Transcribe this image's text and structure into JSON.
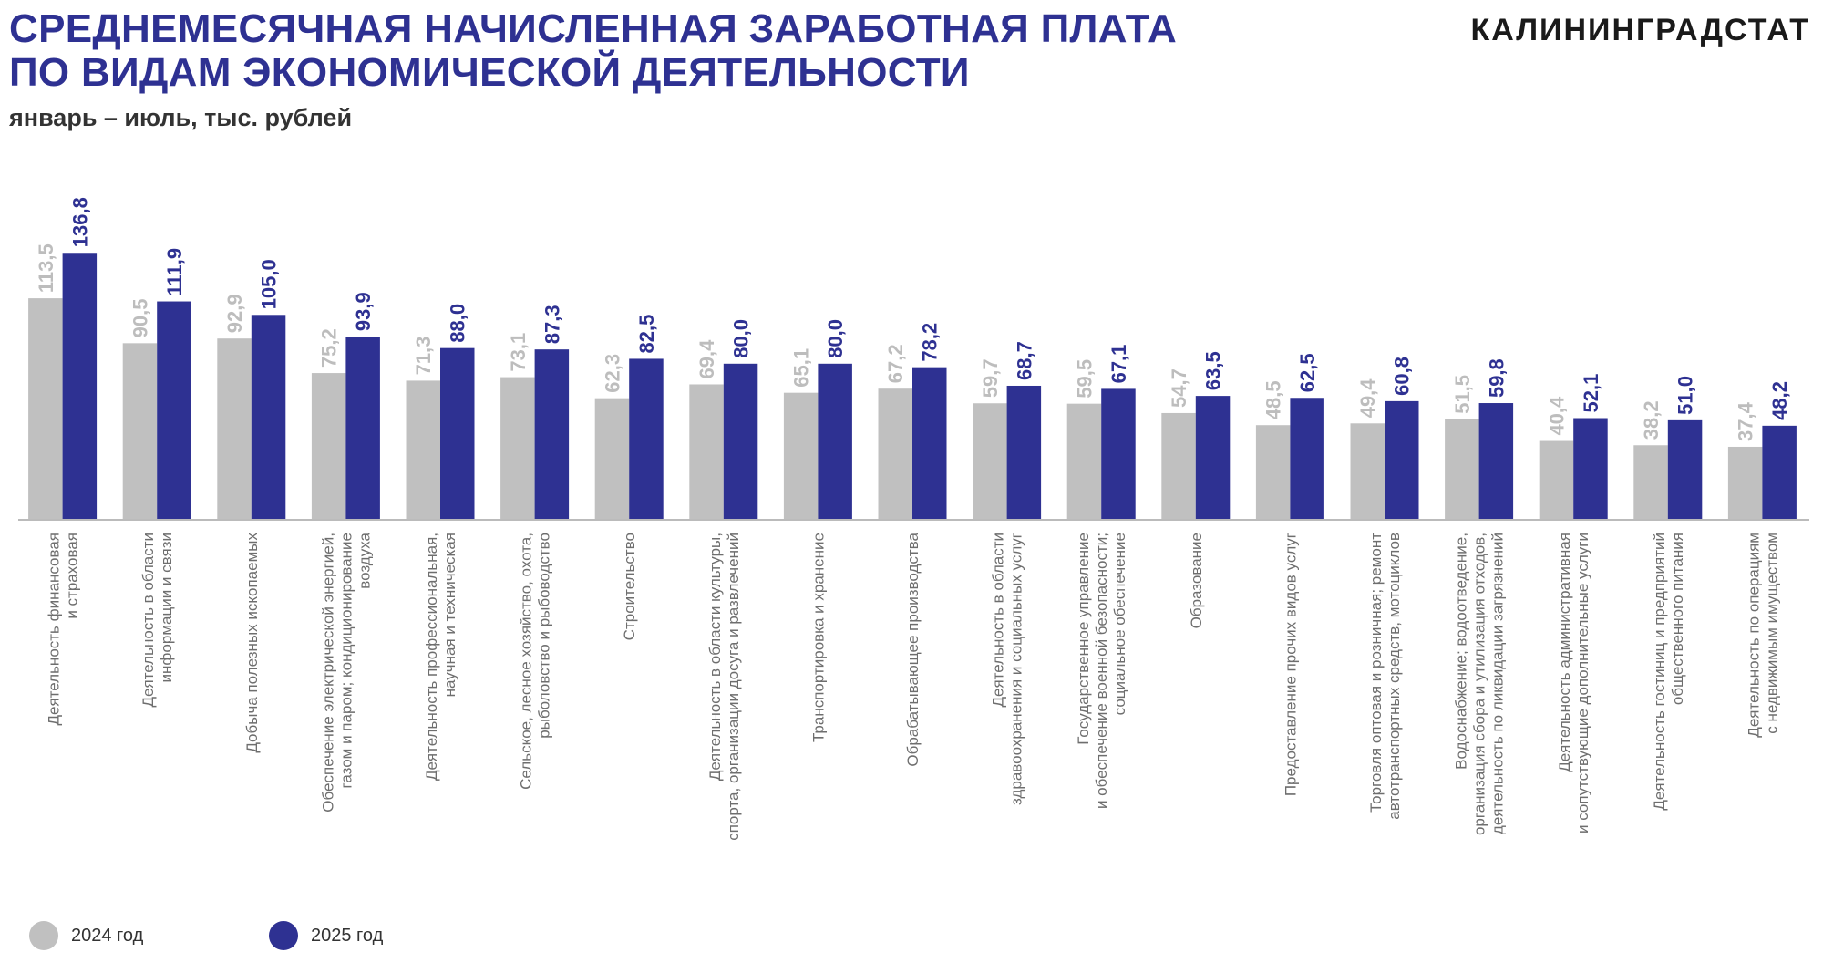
{
  "header": {
    "title_line1": "СРЕДНЕМЕСЯЧНАЯ НАЧИСЛЕННАЯ ЗАРАБОТНАЯ ПЛАТА",
    "title_line2": "ПО ВИДАМ ЭКОНОМИЧЕСКОЙ ДЕЯТЕЛЬНОСТИ",
    "subtitle": "январь – июль, тыс. рублей",
    "brand": "КАЛИНИНГРАДСТАТ"
  },
  "chart_data": {
    "type": "bar",
    "title": "Среднемесячная начисленная заработная плата по видам экономической деятельности",
    "subtitle": "январь – июль, тыс. рублей",
    "xlabel": "",
    "ylabel": "",
    "ylim": [
      0,
      140
    ],
    "grid": false,
    "legend_position": "bottom-left",
    "colors": {
      "2024 год": "#c0c0c0",
      "2025 год": "#2e3192"
    },
    "categories": [
      [
        "Деятельность финансовая",
        "и страховая"
      ],
      [
        "Деятельность в области",
        "информации и связи"
      ],
      [
        "Добыча полезных ископаемых"
      ],
      [
        "Обеспечение электрической энергией,",
        "газом и паром; кондиционирование",
        "воздуха"
      ],
      [
        "Деятельность профессиональная,",
        "научная и техническая"
      ],
      [
        "Сельское, лесное хозяйство, охота,",
        "рыболовство и рыбоводство"
      ],
      [
        "Строительство"
      ],
      [
        "Деятельность в области культуры,",
        "спорта, организации досуга и развлечений"
      ],
      [
        "Транспортировка и хранение"
      ],
      [
        "Обрабатывающее производства"
      ],
      [
        "Деятельность в области",
        "здравоохранения и социальных услуг"
      ],
      [
        "Государственное управление",
        "и обеспечение военной безопасности;",
        "социальное обеспечение"
      ],
      [
        "Образование"
      ],
      [
        "Предоставление прочих видов услуг"
      ],
      [
        "Торговля оптовая и розничная; ремонт",
        "автотранспортных средств, мотоциклов"
      ],
      [
        "Водоснабжение; водоотведение,",
        "организация сбора и утилизация отходов,",
        "деятельность по ликвидации загрязнений"
      ],
      [
        "Деятельность административная",
        "и сопутствующие дополнительные услуги"
      ],
      [
        "Деятельность гостиниц и предприятий",
        "общественного питания"
      ],
      [
        "Деятельность по операциям",
        "с недвижимым имуществом"
      ]
    ],
    "series": [
      {
        "name": "2024 год",
        "values": [
          113.5,
          90.5,
          92.9,
          75.2,
          71.3,
          73.1,
          62.3,
          69.4,
          65.1,
          67.2,
          59.7,
          59.5,
          54.7,
          48.5,
          49.4,
          51.5,
          40.4,
          38.2,
          37.4
        ],
        "labels": [
          "113,5",
          "90,5",
          "92,9",
          "75,2",
          "71,3",
          "73,1",
          "62,3",
          "69,4",
          "65,1",
          "67,2",
          "59,7",
          "59,5",
          "54,7",
          "48,5",
          "49,4",
          "51,5",
          "40,4",
          "38,2",
          "37,4"
        ]
      },
      {
        "name": "2025 год",
        "values": [
          136.8,
          111.9,
          105.0,
          93.9,
          88.0,
          87.3,
          82.5,
          80.0,
          80.0,
          78.2,
          68.7,
          67.1,
          63.5,
          62.5,
          60.8,
          59.8,
          52.1,
          51.0,
          48.2
        ],
        "labels": [
          "136,8",
          "111,9",
          "105,0",
          "93,9",
          "88,0",
          "87,3",
          "82,5",
          "80,0",
          "80,0",
          "78,2",
          "68,7",
          "67,1",
          "63,5",
          "62,5",
          "60,8",
          "59,8",
          "52,1",
          "51,0",
          "48,2"
        ]
      }
    ]
  },
  "legend": {
    "item1": "2024 год",
    "item2": "2025 год"
  }
}
